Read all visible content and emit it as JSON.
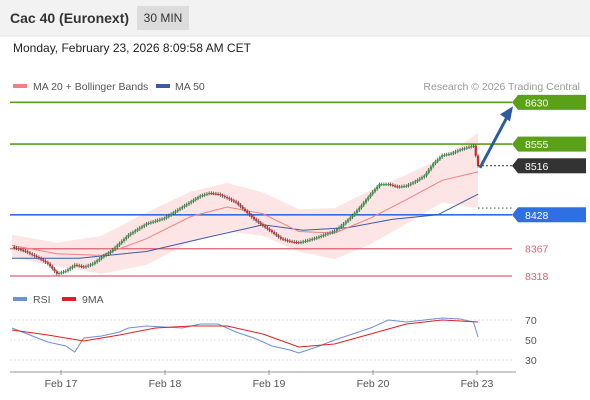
{
  "header": {
    "title": "Cac 40 (Euronext)",
    "timeframe": "30 MIN",
    "datetime": "Monday, February 23, 2026 8:09:58 AM CET"
  },
  "legend": {
    "ma20_label": "MA 20 + Bollinger Bands",
    "ma50_label": "MA 50",
    "credit": "Research © 2026 Trading Central",
    "rsi_label": "RSI",
    "rsi_ma_label": "9MA"
  },
  "colors": {
    "ma20": "#f08080",
    "bollinger_fill": "#fde0e0",
    "ma50": "#3b5ba5",
    "resistance": "#5aa018",
    "support": "#2f6fe4",
    "minor_support": "#e06070",
    "rsi": "#6f8fd8",
    "rsi_ma": "#e02020",
    "up_candle": "#2e9e3e",
    "down_candle": "#d02828",
    "arrow": "#2d5d9f",
    "current_price_tag": "#333333"
  },
  "chart_data": [
    {
      "type": "candlestick",
      "title": "Cac 40 (Euronext)",
      "x_ticks": [
        "Feb 17",
        "Feb 18",
        "Feb 19",
        "Feb 20",
        "Feb 23"
      ],
      "ylim": [
        8300,
        8645
      ],
      "levels": [
        {
          "value": 8630,
          "label": "8630",
          "kind": "resistance"
        },
        {
          "value": 8555,
          "label": "8555",
          "kind": "resistance"
        },
        {
          "value": 8428,
          "label": "8428",
          "kind": "support"
        },
        {
          "value": 8367,
          "label": "8367",
          "kind": "minor_support"
        },
        {
          "value": 8318,
          "label": "8318",
          "kind": "minor_support"
        }
      ],
      "current_price": {
        "value": 8516,
        "label": "8516"
      },
      "projection_target": 8630,
      "price_path": [
        [
          0,
          8370
        ],
        [
          6,
          8362
        ],
        [
          12,
          8350
        ],
        [
          16,
          8340
        ],
        [
          20,
          8322
        ],
        [
          24,
          8327
        ],
        [
          28,
          8338
        ],
        [
          32,
          8334
        ],
        [
          36,
          8340
        ],
        [
          40,
          8352
        ],
        [
          44,
          8362
        ],
        [
          48,
          8377
        ],
        [
          52,
          8392
        ],
        [
          56,
          8402
        ],
        [
          60,
          8412
        ],
        [
          64,
          8417
        ],
        [
          68,
          8422
        ],
        [
          72,
          8432
        ],
        [
          76,
          8442
        ],
        [
          80,
          8452
        ],
        [
          84,
          8462
        ],
        [
          88,
          8467
        ],
        [
          92,
          8465
        ],
        [
          96,
          8458
        ],
        [
          100,
          8450
        ],
        [
          104,
          8435
        ],
        [
          108,
          8420
        ],
        [
          112,
          8408
        ],
        [
          116,
          8397
        ],
        [
          120,
          8385
        ],
        [
          124,
          8380
        ],
        [
          128,
          8378
        ],
        [
          132,
          8382
        ],
        [
          136,
          8387
        ],
        [
          140,
          8393
        ],
        [
          144,
          8399
        ],
        [
          148,
          8412
        ],
        [
          152,
          8427
        ],
        [
          156,
          8445
        ],
        [
          160,
          8465
        ],
        [
          164,
          8483
        ],
        [
          168,
          8483
        ],
        [
          172,
          8478
        ],
        [
          176,
          8480
        ],
        [
          180,
          8488
        ],
        [
          184,
          8498
        ],
        [
          188,
          8520
        ],
        [
          192,
          8535
        ],
        [
          196,
          8538
        ],
        [
          200,
          8545
        ],
        [
          204,
          8550
        ],
        [
          206,
          8552
        ],
        [
          208,
          8516
        ]
      ],
      "ma20_path": [
        [
          0,
          8373
        ],
        [
          20,
          8358
        ],
        [
          40,
          8355
        ],
        [
          60,
          8385
        ],
        [
          80,
          8425
        ],
        [
          96,
          8442
        ],
        [
          112,
          8430
        ],
        [
          128,
          8398
        ],
        [
          144,
          8395
        ],
        [
          160,
          8422
        ],
        [
          176,
          8455
        ],
        [
          192,
          8490
        ],
        [
          208,
          8505
        ]
      ],
      "ma50_path": [
        [
          0,
          8350
        ],
        [
          30,
          8350
        ],
        [
          60,
          8362
        ],
        [
          90,
          8390
        ],
        [
          112,
          8410
        ],
        [
          130,
          8400
        ],
        [
          150,
          8405
        ],
        [
          170,
          8420
        ],
        [
          190,
          8428
        ],
        [
          208,
          8465
        ]
      ],
      "bollinger_upper_path": [
        [
          0,
          8392
        ],
        [
          20,
          8378
        ],
        [
          40,
          8390
        ],
        [
          60,
          8432
        ],
        [
          80,
          8470
        ],
        [
          96,
          8485
        ],
        [
          112,
          8468
        ],
        [
          128,
          8438
        ],
        [
          144,
          8440
        ],
        [
          160,
          8472
        ],
        [
          176,
          8500
        ],
        [
          192,
          8530
        ],
        [
          208,
          8575
        ]
      ],
      "bollinger_lower_path": [
        [
          0,
          8352
        ],
        [
          20,
          8335
        ],
        [
          40,
          8322
        ],
        [
          60,
          8338
        ],
        [
          80,
          8380
        ],
        [
          96,
          8398
        ],
        [
          112,
          8390
        ],
        [
          128,
          8362
        ],
        [
          144,
          8348
        ],
        [
          160,
          8375
        ],
        [
          176,
          8412
        ],
        [
          192,
          8450
        ],
        [
          208,
          8440
        ]
      ]
    },
    {
      "type": "line",
      "title": "RSI",
      "x_ticks": [
        "Feb 17",
        "Feb 18",
        "Feb 19",
        "Feb 20",
        "Feb 23"
      ],
      "ylim": [
        20,
        80
      ],
      "y_ticks": [
        30,
        50,
        70
      ],
      "series": [
        {
          "name": "RSI",
          "values": [
            [
              0,
              62
            ],
            [
              8,
              55
            ],
            [
              16,
              48
            ],
            [
              24,
              44
            ],
            [
              28,
              38
            ],
            [
              32,
              52
            ],
            [
              40,
              54
            ],
            [
              48,
              58
            ],
            [
              52,
              62
            ],
            [
              60,
              64
            ],
            [
              68,
              63
            ],
            [
              76,
              62
            ],
            [
              84,
              66
            ],
            [
              92,
              66
            ],
            [
              100,
              58
            ],
            [
              108,
              52
            ],
            [
              116,
              44
            ],
            [
              124,
              40
            ],
            [
              128,
              37
            ],
            [
              136,
              43
            ],
            [
              144,
              50
            ],
            [
              152,
              56
            ],
            [
              160,
              62
            ],
            [
              168,
              70
            ],
            [
              176,
              68
            ],
            [
              184,
              70
            ],
            [
              192,
              72
            ],
            [
              200,
              71
            ],
            [
              206,
              68
            ],
            [
              208,
              53
            ]
          ]
        },
        {
          "name": "9MA",
          "values": [
            [
              0,
              60
            ],
            [
              16,
              55
            ],
            [
              32,
              49
            ],
            [
              48,
              55
            ],
            [
              64,
              62
            ],
            [
              80,
              64
            ],
            [
              96,
              64
            ],
            [
              112,
              56
            ],
            [
              128,
              43
            ],
            [
              144,
              46
            ],
            [
              160,
              56
            ],
            [
              176,
              66
            ],
            [
              192,
              70
            ],
            [
              208,
              68
            ]
          ]
        }
      ]
    }
  ]
}
